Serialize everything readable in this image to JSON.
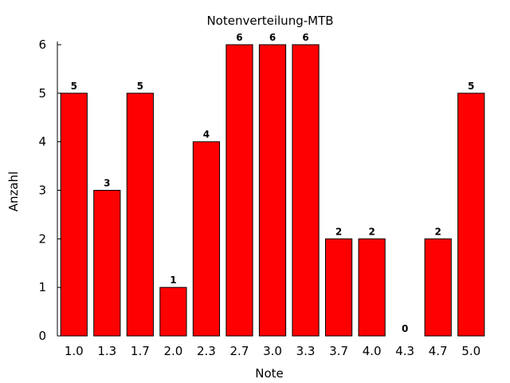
{
  "chart_data": {
    "type": "bar",
    "title": "Notenverteilung-MTB",
    "xlabel": "Note",
    "ylabel": "Anzahl",
    "categories": [
      "1.0",
      "1.3",
      "1.7",
      "2.0",
      "2.3",
      "2.7",
      "3.0",
      "3.3",
      "3.7",
      "4.0",
      "4.3",
      "4.7",
      "5.0"
    ],
    "values": [
      5,
      3,
      5,
      1,
      4,
      6,
      6,
      6,
      2,
      2,
      0,
      2,
      5
    ],
    "ylim": [
      0,
      6
    ],
    "yticks": [
      0,
      1,
      2,
      3,
      4,
      5,
      6
    ],
    "bar_color": "#ff0000",
    "grid": false,
    "legend": "none",
    "data_labels": true
  }
}
